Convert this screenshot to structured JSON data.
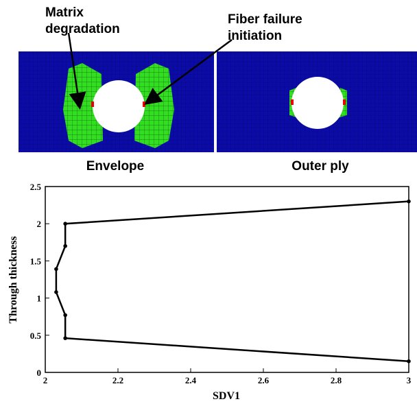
{
  "figure": {
    "annotations": [
      "Matrix",
      "degradation",
      "Fiber failure",
      "initiation"
    ],
    "panel_labels": [
      "Envelope",
      "Outer ply"
    ]
  },
  "chart_data": {
    "type": "line",
    "xlabel": "SDV1",
    "ylabel": "Through thickness",
    "xlim": [
      2,
      3
    ],
    "ylim": [
      0,
      2.5
    ],
    "xticks": [
      2,
      2.2,
      2.4,
      2.6,
      2.8,
      3
    ],
    "yticks": [
      0,
      0.5,
      1,
      1.5,
      2,
      2.5
    ],
    "series": [
      {
        "name": "SDV1",
        "color": "#000000",
        "x": [
          3,
          2.055,
          2.055,
          2.03,
          2.03,
          2.055,
          2.055,
          3
        ],
        "values": [
          2.3,
          2.0,
          1.7,
          1.39,
          1.08,
          0.77,
          0.46,
          0.15
        ]
      }
    ]
  }
}
